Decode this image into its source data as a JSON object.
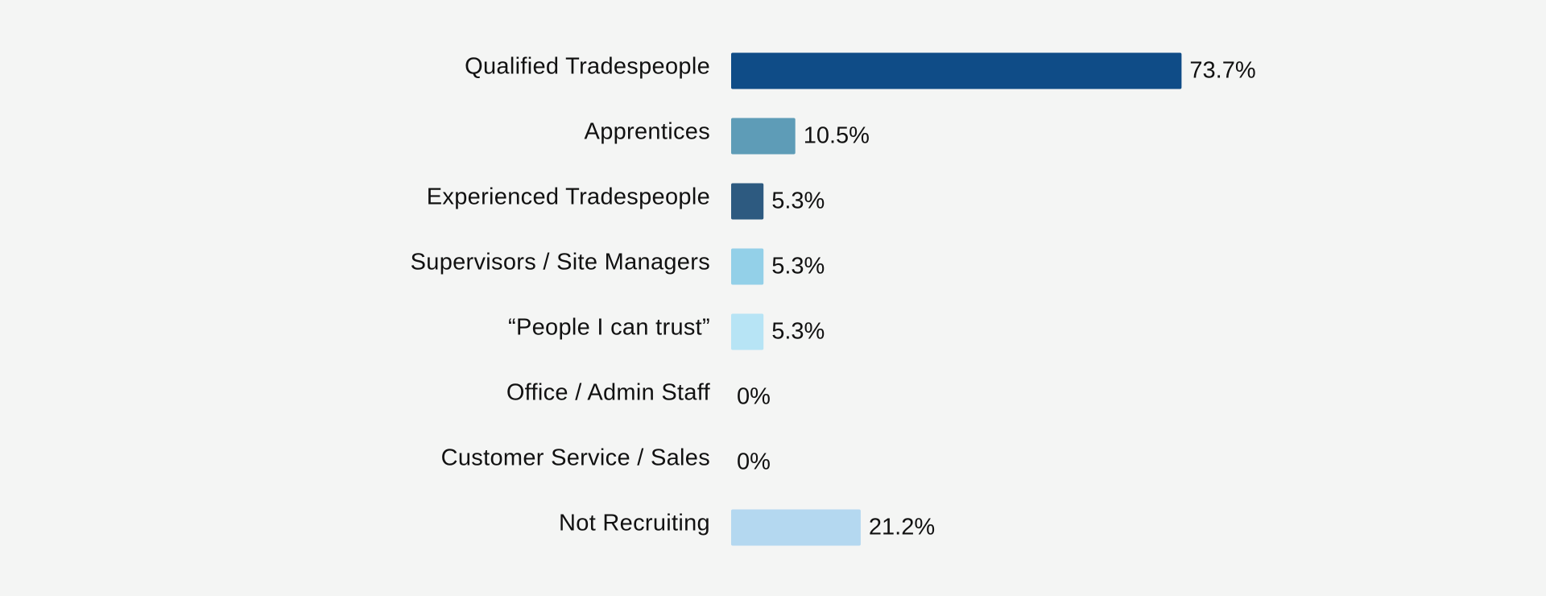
{
  "chart_data": {
    "type": "bar",
    "orientation": "horizontal",
    "categories": [
      "Qualified Tradespeople",
      "Apprentices",
      "Experienced Tradespeople",
      "Supervisors / Site Managers",
      "“People I can trust”",
      "Office / Admin Staff",
      "Customer Service / Sales",
      "Not Recruiting"
    ],
    "values": [
      73.7,
      10.5,
      5.3,
      5.3,
      5.3,
      0,
      0,
      21.2
    ],
    "value_labels": [
      "73.7%",
      "10.5%",
      "5.3%",
      "5.3%",
      "5.3%",
      "0%",
      "0%",
      "21.2%"
    ],
    "colors": [
      "#0f4c87",
      "#5e9cb7",
      "#2d5a80",
      "#93d0e8",
      "#b7e4f5",
      "#b4d8f0",
      "#b4d8f0",
      "#b4d8f0"
    ],
    "title": "",
    "xlabel": "",
    "ylabel": "",
    "xlim": [
      0,
      100
    ],
    "grid": false,
    "legend": "none"
  }
}
